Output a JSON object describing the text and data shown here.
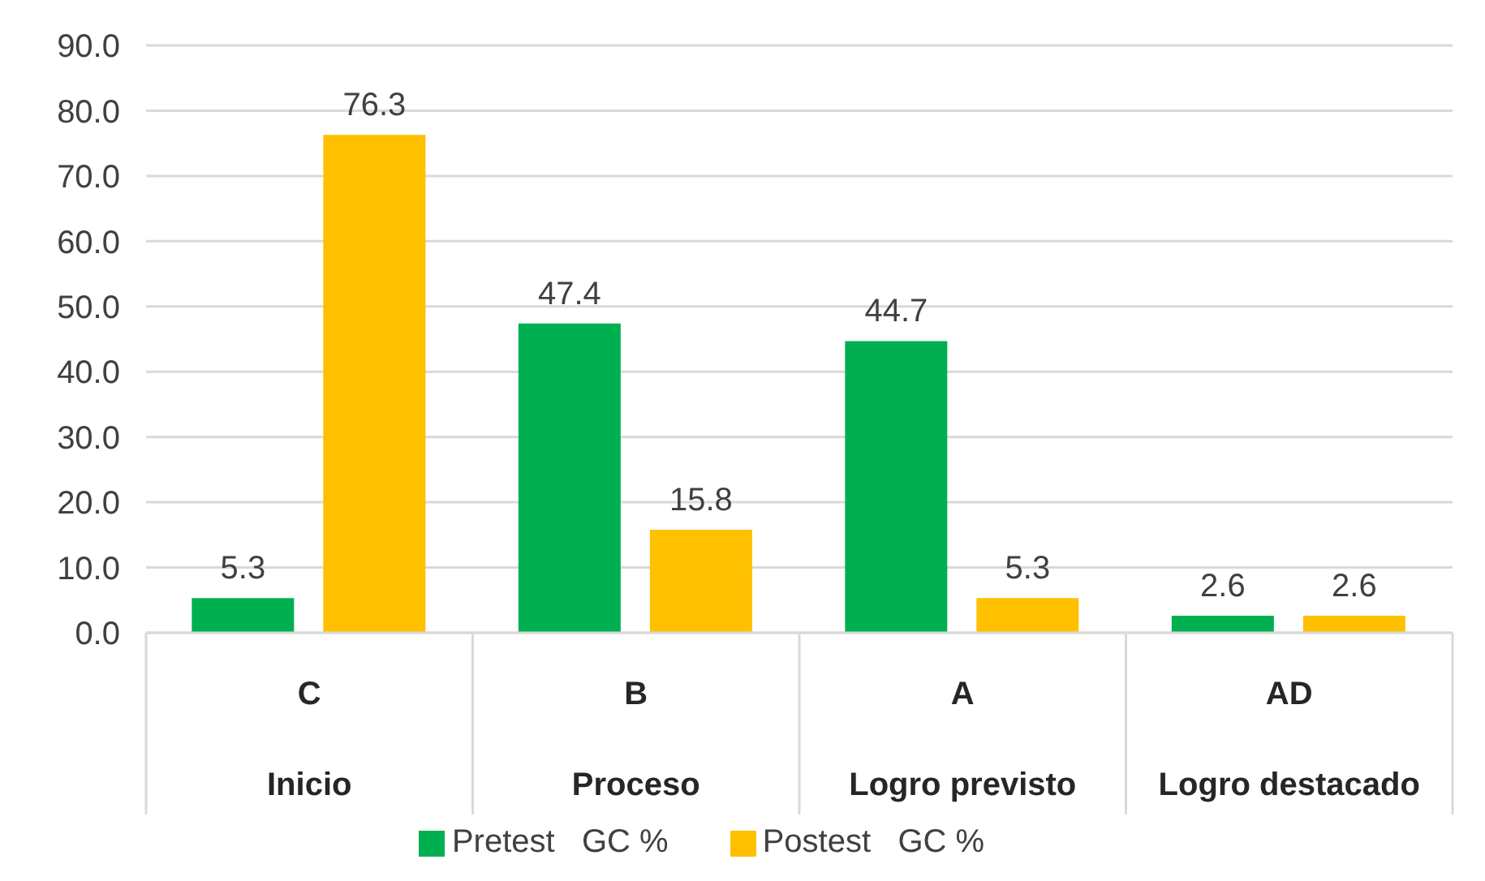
{
  "chart_data": {
    "type": "bar",
    "categories": [
      "C\nInicio",
      "B\nProceso",
      "A\nLogro previsto",
      "AD\nLogro destacado"
    ],
    "series": [
      {
        "name": "Pretest   GC %",
        "color": "#00b050",
        "values": [
          5.3,
          47.4,
          44.7,
          2.6
        ]
      },
      {
        "name": "Postest   GC %",
        "color": "#ffc000",
        "values": [
          76.3,
          15.8,
          5.3,
          2.6
        ]
      }
    ],
    "ylim": [
      0,
      90
    ],
    "yticks": [
      {
        "value": 0,
        "label": "0.0"
      },
      {
        "value": 10,
        "label": "10.0"
      },
      {
        "value": 20,
        "label": "20.0"
      },
      {
        "value": 30,
        "label": "30.0"
      },
      {
        "value": 40,
        "label": "40.0"
      },
      {
        "value": 50,
        "label": "50.0"
      },
      {
        "value": 60,
        "label": "60.0"
      },
      {
        "value": 70,
        "label": "70.0"
      },
      {
        "value": 80,
        "label": "80.0"
      },
      {
        "value": 90,
        "label": "90.0"
      }
    ],
    "grid": "y",
    "legend": "bottom",
    "data_labels": true
  }
}
